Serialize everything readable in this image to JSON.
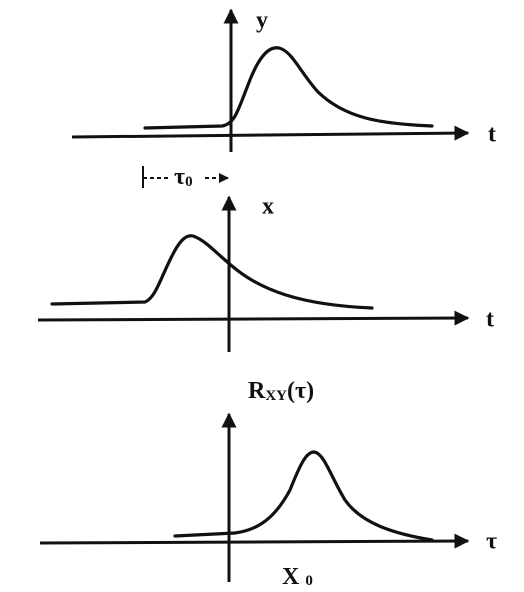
{
  "panels": [
    {
      "y_label": "y",
      "x_label": "t",
      "delay_label": {
        "symbol": "τ",
        "subscript": "0"
      }
    },
    {
      "y_label": "x",
      "x_label": "t"
    },
    {
      "y_label": {
        "symbol": "R",
        "subscript": "XY",
        "argument": "(τ)"
      },
      "x_label": "τ",
      "peak_label": {
        "symbol": "X",
        "subscript": "0"
      }
    }
  ]
}
